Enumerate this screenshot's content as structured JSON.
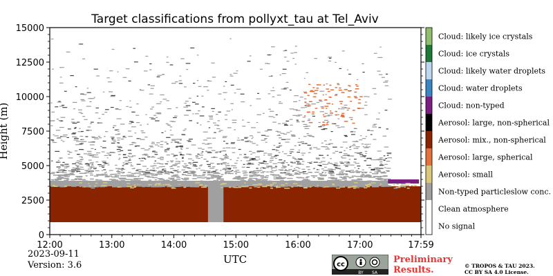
{
  "chart_data": {
    "type": "heatmap",
    "title": "Target classifications from pollyxt_tau at Tel_Aviv",
    "xlabel": "UTC",
    "ylabel": "Height (m)",
    "x_ticks": [
      "12:00",
      "13:00",
      "14:00",
      "15:00",
      "16:00",
      "17:00",
      "17:59"
    ],
    "x_tick_hours": [
      12.0,
      13.0,
      14.0,
      15.0,
      16.0,
      17.0,
      17.983
    ],
    "xlim_hours": [
      12.0,
      17.983
    ],
    "y_ticks": [
      0,
      2500,
      5000,
      7500,
      10000,
      12500,
      15000
    ],
    "ylim": [
      0,
      15000
    ],
    "grid": false,
    "legend_placement": "right colorbar",
    "classes": [
      {
        "label": "Cloud: likely ice crystals",
        "color": "#8fbf6a"
      },
      {
        "label": "Cloud: ice crystals",
        "color": "#1d7a36"
      },
      {
        "label": "Cloud: likely water droplets",
        "color": "#bcd7f0"
      },
      {
        "label": "Cloud: water droplets",
        "color": "#3a86c4"
      },
      {
        "label": "Cloud: non-typed",
        "color": "#7a1e82"
      },
      {
        "label": "Aerosol: large, non-spherical",
        "color": "#000000"
      },
      {
        "label": "Aerosol: mix., non-spherical",
        "color": "#8a2400"
      },
      {
        "label": "Aerosol: large, spherical",
        "color": "#e4713b"
      },
      {
        "label": "Aerosol: small",
        "color": "#d9c77a"
      },
      {
        "label": "Non-typed particleslow conc.",
        "color": "#a0a0a0"
      },
      {
        "label": "Clean atmosphere",
        "color": "#ffffff"
      },
      {
        "label": "No signal",
        "color": "#ffffff"
      }
    ],
    "regions": [
      {
        "class": "No signal",
        "t_start": 12.0,
        "t_end": 17.983,
        "h_bottom": 0,
        "h_top": 900
      },
      {
        "class": "Aerosol: mix., non-spherical",
        "t_start": 12.0,
        "t_end": 17.983,
        "h_bottom": 900,
        "h_top": 3500
      },
      {
        "class": "Non-typed particleslow conc.",
        "t_start": 14.55,
        "t_end": 14.8,
        "h_bottom": 900,
        "h_top": 3600
      },
      {
        "class": "Non-typed particleslow conc.",
        "t_start": 12.0,
        "t_end": 17.45,
        "h_bottom": 3500,
        "h_top": 4500
      },
      {
        "class": "Cloud: non-typed",
        "t_start": 17.45,
        "t_end": 17.95,
        "h_bottom": 3700,
        "h_top": 4000
      },
      {
        "class": "Aerosol: large, spherical",
        "t_start": 16.1,
        "t_end": 17.0,
        "h_bottom": 8000,
        "h_top": 11000
      }
    ]
  },
  "info": {
    "date": "2023-09-11",
    "version": "Version: 3.6"
  },
  "badge": {
    "preliminary": "Preliminary Results.",
    "copyright_line1": "© TROPOS & TAU 2023.",
    "copyright_line2": "CC BY SA 4.0 License.",
    "cc_logo_text": "cc",
    "cc_by": "BY",
    "cc_sa": "SA"
  }
}
